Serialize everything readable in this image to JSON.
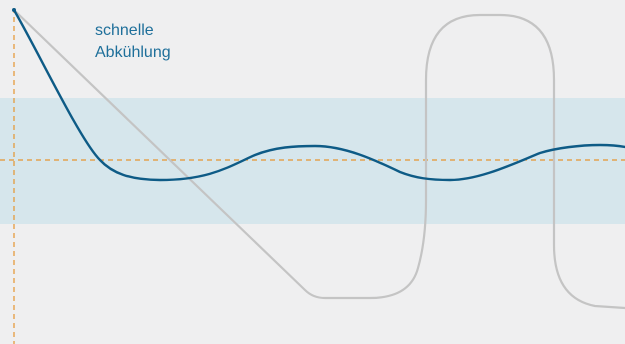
{
  "annotation": {
    "line1": "schnelle",
    "line2": "Abkühlung"
  },
  "colors": {
    "background": "#efeff0",
    "target_band": "#d6e6ec",
    "reference_lines": "#e5952f",
    "controlled_curve": "#0e5b86",
    "uncontrolled_curve": "#c4c4c4",
    "label_text": "#1e6f9a"
  }
}
